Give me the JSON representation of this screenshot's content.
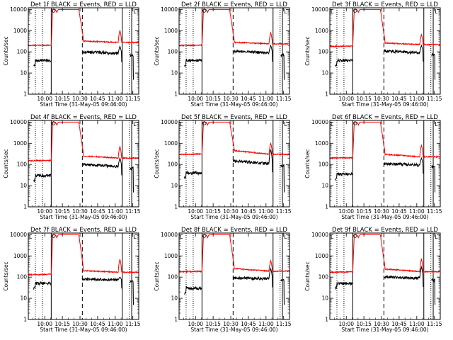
{
  "chart_data": {
    "type": "line",
    "yscale": "log",
    "ylim": [
      1,
      12000
    ],
    "y_ticks": [
      "1",
      "10",
      "100",
      "1000",
      "10000"
    ],
    "x_ticks": [
      "10:00",
      "10:15",
      "10:30",
      "10:45",
      "11:00",
      "11:15"
    ],
    "x_tick_minutes": [
      0,
      15,
      30,
      45,
      60,
      75
    ],
    "xlim_minutes": [
      -14,
      80
    ],
    "ylabel": "Counts/sec",
    "xlabel": "Start Time (31-May-05 09:46:00)",
    "series_colors": {
      "events": "#000000",
      "lld": "#ff0000"
    },
    "markers": {
      "dotted_minutes": [
        -8,
        -2,
        72
      ],
      "solid_minutes": [
        5.5,
        66,
        74
      ],
      "dashed_minutes": [
        32
      ]
    },
    "legend_glyph": "L",
    "panels": [
      {
        "title": "Det 1f BLACK = Events, RED = LLD",
        "lld": {
          "pre": 200,
          "peak": 10000,
          "post": 320,
          "tail": 280,
          "spike": 1000
        },
        "events": {
          "pre": 40,
          "post": 100,
          "tail": 85,
          "spike": 180
        }
      },
      {
        "title": "Det 2f BLACK = Events, RED = LLD",
        "lld": {
          "pre": 200,
          "peak": 10000,
          "post": 280,
          "tail": 240,
          "spike": 800
        },
        "events": {
          "pre": 40,
          "post": 110,
          "tail": 90,
          "spike": 200
        }
      },
      {
        "title": "Det 3f BLACK = Events, RED = LLD",
        "lld": {
          "pre": 180,
          "peak": 10000,
          "post": 260,
          "tail": 220,
          "spike": 650
        },
        "events": {
          "pre": 40,
          "post": 110,
          "tail": 90,
          "spike": 200
        }
      },
      {
        "title": "Det 4f BLACK = Events, RED = LLD",
        "lld": {
          "pre": 150,
          "peak": 10000,
          "post": 250,
          "tail": 200,
          "spike": 700
        },
        "events": {
          "pre": 30,
          "post": 100,
          "tail": 80,
          "spike": 200
        }
      },
      {
        "title": "Det 5f BLACK = Events, RED = LLD",
        "lld": {
          "pre": 300,
          "peak": 10000,
          "post": 450,
          "tail": 300,
          "spike": 1000
        },
        "events": {
          "pre": 40,
          "post": 150,
          "tail": 110,
          "spike": 500
        }
      },
      {
        "title": "Det 6f BLACK = Events, RED = LLD",
        "lld": {
          "pre": 200,
          "peak": 10000,
          "post": 300,
          "tail": 230,
          "spike": 800
        },
        "events": {
          "pre": 35,
          "post": 110,
          "tail": 95,
          "spike": 200
        }
      },
      {
        "title": "Det 7f BLACK = Events, RED = LLD",
        "lld": {
          "pre": 130,
          "peak": 10000,
          "post": 200,
          "tail": 170,
          "spike": 700
        },
        "events": {
          "pre": 50,
          "post": 80,
          "tail": 75,
          "spike": 100
        }
      },
      {
        "title": "Det 8f BLACK = Events, RED = LLD",
        "lld": {
          "pre": 180,
          "peak": 10000,
          "post": 250,
          "tail": 190,
          "spike": 600
        },
        "events": {
          "pre": 30,
          "post": 90,
          "tail": 85,
          "spike": 250
        }
      },
      {
        "title": "Det 9f BLACK = Events, RED = LLD",
        "lld": {
          "pre": 170,
          "peak": 10000,
          "post": 240,
          "tail": 180,
          "spike": 700
        },
        "events": {
          "pre": 50,
          "post": 100,
          "tail": 90,
          "spike": 300
        }
      }
    ]
  }
}
